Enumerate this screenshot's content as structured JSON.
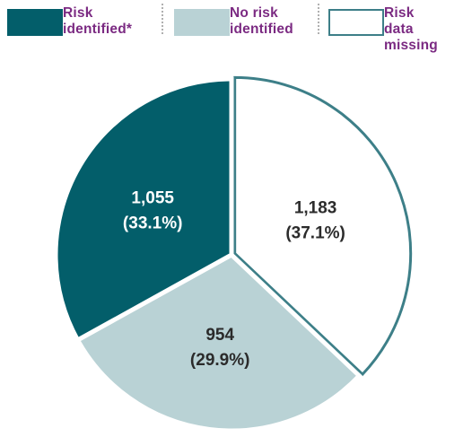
{
  "chart_data": {
    "type": "pie",
    "legend_placement": "top",
    "slices": [
      {
        "name": "Risk identified*",
        "legend_lines": [
          "Risk",
          "identified*"
        ],
        "value": 1055,
        "percent": 33.1,
        "count_label": "1,055",
        "percent_label": "(33.1%)",
        "fill": "#035e6a",
        "stroke": "#035e6a",
        "text_color": "#ffffff",
        "legend_text_color": "#7b2a82"
      },
      {
        "name": "No risk identified",
        "legend_lines": [
          "No risk",
          "identified"
        ],
        "value": 954,
        "percent": 29.9,
        "count_label": "954",
        "percent_label": "(29.9%)",
        "fill": "#b9d2d5",
        "stroke": "#b9d2d5",
        "text_color": "#2b2b2b",
        "legend_text_color": "#7b2a82"
      },
      {
        "name": "Risk data missing",
        "legend_lines": [
          "Risk data",
          "missing"
        ],
        "value": 1183,
        "percent": 37.1,
        "count_label": "1,183",
        "percent_label": "(37.1%)",
        "fill": "#ffffff",
        "stroke": "#3d7f88",
        "text_color": "#2b2b2b",
        "legend_text_color": "#7b2a82"
      }
    ]
  }
}
